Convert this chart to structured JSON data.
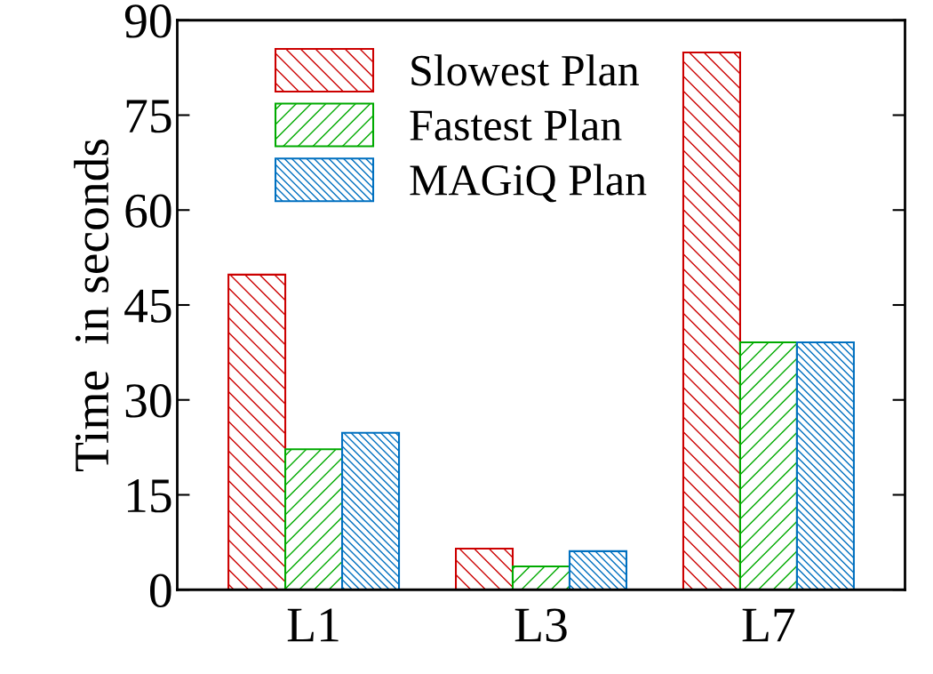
{
  "chart_data": {
    "type": "bar",
    "ylabel": "Time  in seconds",
    "categories": [
      "L1",
      "L3",
      "L7"
    ],
    "series": [
      {
        "name": "Slowest Plan",
        "color": "#cc0000",
        "values": [
          49.8,
          6.5,
          84.9
        ]
      },
      {
        "name": "Fastest Plan",
        "color": "#00aa00",
        "values": [
          22.2,
          3.7,
          39.1
        ]
      },
      {
        "name": "MAGiQ Plan",
        "color": "#0070c0",
        "values": [
          24.8,
          6.1,
          39.1
        ]
      }
    ],
    "ylim": [
      0,
      90
    ],
    "yticks": [
      0,
      15,
      30,
      45,
      60,
      75,
      90
    ],
    "grid": false,
    "legend": "top left"
  }
}
